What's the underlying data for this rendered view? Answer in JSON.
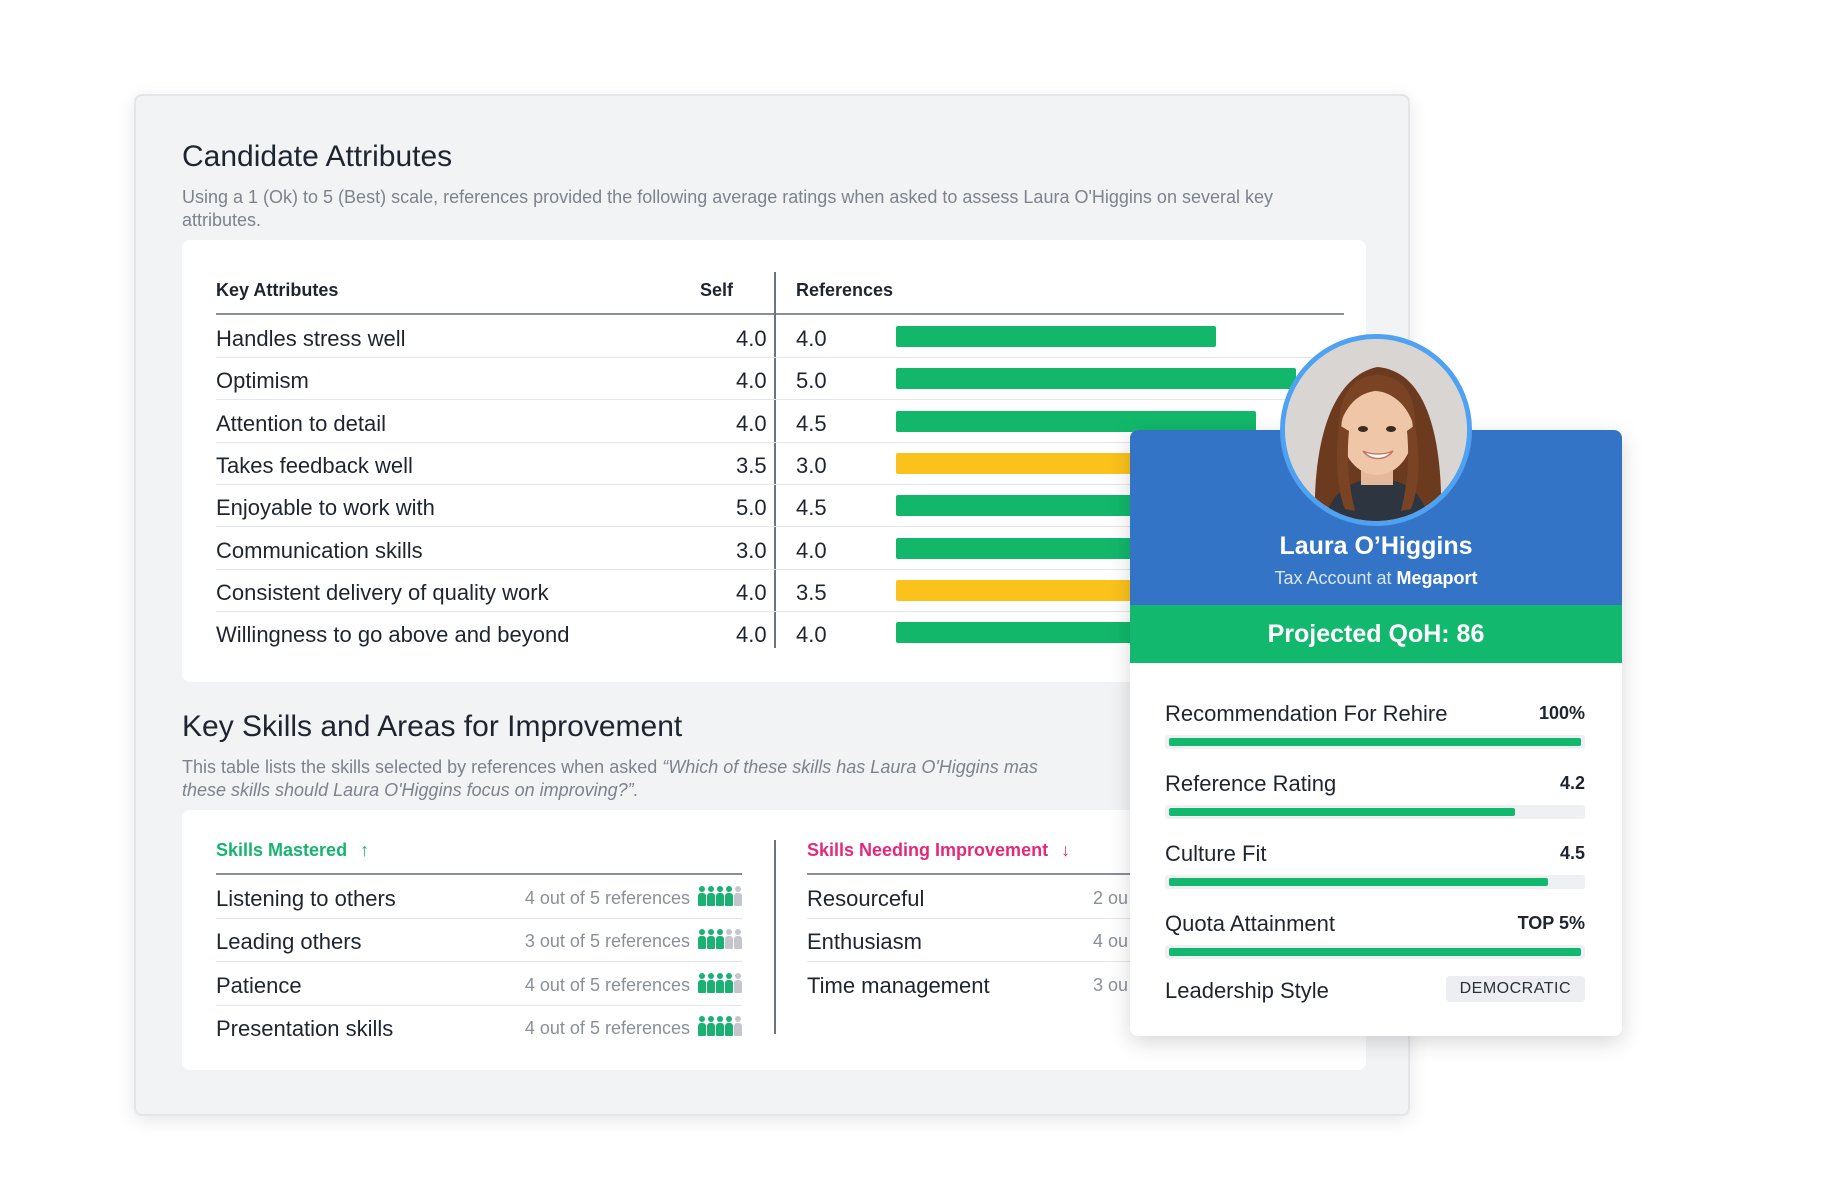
{
  "attributes": {
    "title": "Candidate Attributes",
    "description": "Using a 1 (Ok) to 5 (Best) scale, references provided the following average ratings when asked to assess Laura O'Higgins on several key attributes.",
    "columns": {
      "attribute": "Key Attributes",
      "self": "Self",
      "references": "References"
    },
    "scale_max": 5,
    "rows": [
      {
        "name": "Handles stress well",
        "self": "4.0",
        "references": "4.0",
        "ref_value": 4.0,
        "color": "#12b76a"
      },
      {
        "name": "Optimism",
        "self": "4.0",
        "references": "5.0",
        "ref_value": 5.0,
        "color": "#12b76a"
      },
      {
        "name": "Attention to detail",
        "self": "4.0",
        "references": "4.5",
        "ref_value": 4.5,
        "color": "#12b76a"
      },
      {
        "name": "Takes feedback well",
        "self": "3.5",
        "references": "3.0",
        "ref_value": 3.0,
        "color": "#fbc21b"
      },
      {
        "name": "Enjoyable to work with",
        "self": "5.0",
        "references": "4.5",
        "ref_value": 4.5,
        "color": "#12b76a"
      },
      {
        "name": "Communication skills",
        "self": "3.0",
        "references": "4.0",
        "ref_value": 4.0,
        "color": "#12b76a"
      },
      {
        "name": "Consistent delivery of quality work",
        "self": "4.0",
        "references": "3.5",
        "ref_value": 3.5,
        "color": "#fbc21b"
      },
      {
        "name": "Willingness to go above and beyond",
        "self": "4.0",
        "references": "4.0",
        "ref_value": 4.0,
        "color": "#12b76a"
      }
    ]
  },
  "skills": {
    "title": "Key Skills and Areas for Improvement",
    "description_plain": "This table lists the skills selected by references when asked ",
    "description_quote": "“Which of these skills has Laura O'Higgins mas",
    "description_line2": "these skills should Laura O'Higgins focus on improving?”.",
    "mastered_label": "Skills Mastered",
    "mastered_arrow": "↑",
    "improvement_label": "Skills Needing Improvement",
    "improvement_arrow": "↓",
    "total_references": 5,
    "mastered": [
      {
        "name": "Listening to others",
        "count_text": "4 out of 5 references",
        "count": 4
      },
      {
        "name": "Leading others",
        "count_text": "3 out of 5 references",
        "count": 3
      },
      {
        "name": "Patience",
        "count_text": "4 out of 5 references",
        "count": 4
      },
      {
        "name": "Presentation skills",
        "count_text": "4 out of 5 references",
        "count": 4
      }
    ],
    "improvement": [
      {
        "name": "Resourceful",
        "count_text": "2 ou"
      },
      {
        "name": "Enthusiasm",
        "count_text": "4 ou"
      },
      {
        "name": "Time management",
        "count_text": "3 ou"
      }
    ]
  },
  "profile": {
    "name": "Laura O’Higgins",
    "role_prefix": "Tax Account at ",
    "company": "Megaport",
    "qoh": "Projected QoH: 86",
    "metrics": [
      {
        "label": "Recommendation For Rehire",
        "value": "100%",
        "level": 1.0
      },
      {
        "label": "Reference Rating",
        "value": "4.2",
        "level": 0.84
      },
      {
        "label": "Culture Fit",
        "value": "4.5",
        "level": 0.92
      },
      {
        "label": "Quota Attainment",
        "value": "TOP 5%",
        "level": 1.0
      }
    ],
    "leadership_label": "Leadership Style",
    "leadership_value": "DEMOCRATIC"
  },
  "colors": {
    "good": "#12b76a",
    "warn": "#fbc21b",
    "profile_blue": "#3474c6",
    "accent_pink": "#e5297a"
  }
}
